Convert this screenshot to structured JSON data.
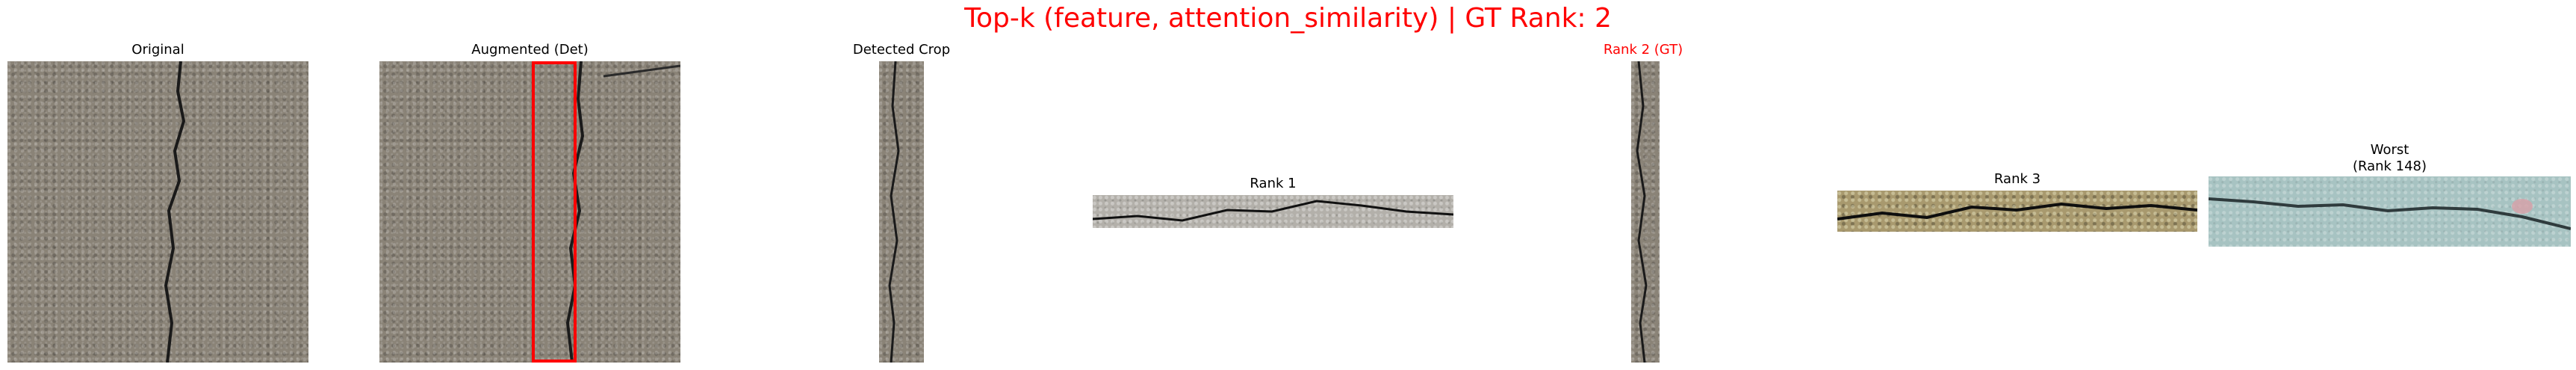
{
  "suptitle": "Top-k (feature, attention_similarity) | GT Rank: 2",
  "panels": {
    "original": "Original",
    "augmented": "Augmented (Det)",
    "detected": "Detected Crop",
    "rank1": "Rank 1",
    "rank2": "Rank 2 (GT)",
    "rank3": "Rank 3",
    "worst": "Worst\n(Rank 148)"
  },
  "colors": {
    "title": "#ff0000",
    "gt_label": "#ff0000",
    "detection_box": "#ff0000"
  }
}
